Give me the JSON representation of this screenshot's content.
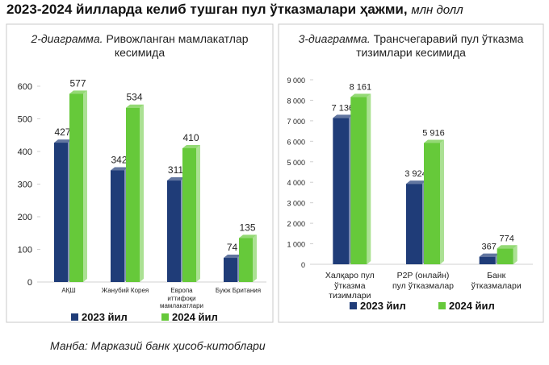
{
  "title": "2023-2024 йилларда келиб тушган пул ўтказмалари ҳажми,",
  "title_unit": "млн долл",
  "source": "Манба: Марказий банк ҳисоб-китоблари",
  "chart_data": [
    {
      "type": "bar",
      "title_number": "2-диаграмма.",
      "title": "Ривожланган мамлакатлар кесимида",
      "categories": [
        "АҚШ",
        "Жанубий Корея",
        "Европа иттифоқи мамлакатлари",
        "Буюк Британия"
      ],
      "series": [
        {
          "name": "2023 йил",
          "color": "#1f3c78",
          "values": [
            427,
            342,
            311,
            74
          ]
        },
        {
          "name": "2024 йил",
          "color": "#66c93a",
          "values": [
            577,
            534,
            410,
            135
          ]
        }
      ],
      "ylim": [
        0,
        600
      ],
      "yticks": [
        0,
        100,
        200,
        300,
        400,
        500,
        600
      ],
      "grid": false
    },
    {
      "type": "bar",
      "title_number": "3-диаграмма.",
      "title": "Трансчегаравий пул ўтказма тизимлари кесимида",
      "categories": [
        "Халқаро пул ўтказма тизимлари",
        "P2P (онлайн) пул ўтказмалар",
        "Банк ўтказмалари"
      ],
      "series": [
        {
          "name": "2023 йил",
          "color": "#1f3c78",
          "values": [
            7136,
            3924,
            367
          ],
          "value_labels": [
            "7 136",
            "3 924",
            "367"
          ]
        },
        {
          "name": "2024 йил",
          "color": "#66c93a",
          "values": [
            8161,
            5916,
            774
          ],
          "value_labels": [
            "8 161",
            "5 916",
            "774"
          ]
        }
      ],
      "ylim": [
        0,
        9000
      ],
      "yticks": [
        0,
        {
          "value": 1000,
          "label": "1 000"
        },
        {
          "value": 2000,
          "label": "2 000"
        },
        {
          "value": 3000,
          "label": "3 000"
        },
        {
          "value": 4000,
          "label": "4 000"
        },
        {
          "value": 5000,
          "label": "5 000"
        },
        {
          "value": 6000,
          "label": "6 000"
        },
        {
          "value": 7000,
          "label": "7 000"
        },
        {
          "value": 8000,
          "label": "8 000"
        },
        {
          "value": 9000,
          "label": "9 000"
        }
      ],
      "grid": false
    }
  ]
}
